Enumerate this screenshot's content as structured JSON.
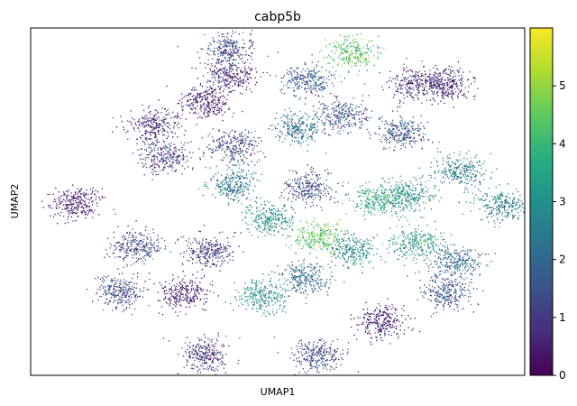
{
  "chart_data": {
    "type": "scatter",
    "title": "cabp5b",
    "xlabel": "UMAP1",
    "ylabel": "UMAP2",
    "x_ticks_shown": false,
    "y_ticks_shown": false,
    "grid": false,
    "colormap": "viridis",
    "colorbar": {
      "min": 0,
      "max": 6,
      "ticks": [
        "0",
        "1",
        "2",
        "3",
        "4",
        "5"
      ]
    },
    "clusters": [
      {
        "x": 0.4,
        "y": 0.94,
        "expr": 1.3
      },
      {
        "x": 0.65,
        "y": 0.93,
        "expr": 4.3
      },
      {
        "x": 0.4,
        "y": 0.86,
        "expr": 0.6
      },
      {
        "x": 0.56,
        "y": 0.85,
        "expr": 1.7
      },
      {
        "x": 0.78,
        "y": 0.84,
        "expr": 0.8
      },
      {
        "x": 0.84,
        "y": 0.84,
        "expr": 0.6
      },
      {
        "x": 0.35,
        "y": 0.79,
        "expr": 0.4
      },
      {
        "x": 0.25,
        "y": 0.72,
        "expr": 0.6
      },
      {
        "x": 0.63,
        "y": 0.75,
        "expr": 1.5
      },
      {
        "x": 0.75,
        "y": 0.7,
        "expr": 1.6
      },
      {
        "x": 0.54,
        "y": 0.71,
        "expr": 2.3
      },
      {
        "x": 0.41,
        "y": 0.66,
        "expr": 1.3
      },
      {
        "x": 0.27,
        "y": 0.63,
        "expr": 1.0
      },
      {
        "x": 0.56,
        "y": 0.54,
        "expr": 1.3
      },
      {
        "x": 0.41,
        "y": 0.55,
        "expr": 2.5
      },
      {
        "x": 0.76,
        "y": 0.52,
        "expr": 2.9
      },
      {
        "x": 0.87,
        "y": 0.59,
        "expr": 2.5
      },
      {
        "x": 0.95,
        "y": 0.49,
        "expr": 2.5
      },
      {
        "x": 0.09,
        "y": 0.5,
        "expr": 0.3
      },
      {
        "x": 0.7,
        "y": 0.51,
        "expr": 3.5
      },
      {
        "x": 0.48,
        "y": 0.45,
        "expr": 3.0
      },
      {
        "x": 0.58,
        "y": 0.4,
        "expr": 4.5
      },
      {
        "x": 0.65,
        "y": 0.36,
        "expr": 3.0
      },
      {
        "x": 0.21,
        "y": 0.37,
        "expr": 1.2
      },
      {
        "x": 0.36,
        "y": 0.36,
        "expr": 0.9
      },
      {
        "x": 0.78,
        "y": 0.38,
        "expr": 3.2
      },
      {
        "x": 0.86,
        "y": 0.33,
        "expr": 2.0
      },
      {
        "x": 0.47,
        "y": 0.23,
        "expr": 3.0
      },
      {
        "x": 0.55,
        "y": 0.28,
        "expr": 2.2
      },
      {
        "x": 0.31,
        "y": 0.24,
        "expr": 0.5
      },
      {
        "x": 0.18,
        "y": 0.24,
        "expr": 1.3
      },
      {
        "x": 0.84,
        "y": 0.24,
        "expr": 1.5
      },
      {
        "x": 0.71,
        "y": 0.16,
        "expr": 0.4
      },
      {
        "x": 0.35,
        "y": 0.06,
        "expr": 0.8
      },
      {
        "x": 0.58,
        "y": 0.06,
        "expr": 1.3
      }
    ]
  }
}
